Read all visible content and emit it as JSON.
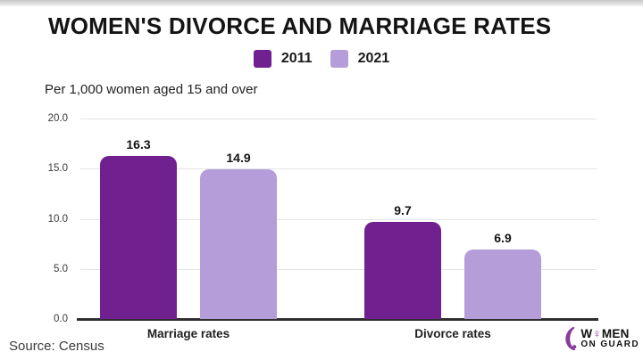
{
  "title": "WOMEN'S DIVORCE AND MARRIAGE RATES",
  "subtitle": "Per 1,000 women aged 15 and over",
  "source": "Source: Census",
  "legend": [
    {
      "label": "2011",
      "color": "#71218F"
    },
    {
      "label": "2021",
      "color": "#B49DD8"
    }
  ],
  "colors": {
    "bar_2011": "#71218F",
    "bar_2021": "#B49DD8",
    "gridline": "#e4e4e4",
    "axis_line": "#2e2e2e",
    "logo_accent": "#8a3c9c"
  },
  "chart_data": {
    "type": "bar",
    "categories": [
      "Marriage rates",
      "Divorce rates"
    ],
    "series": [
      {
        "name": "2011",
        "color": "#71218F",
        "values": [
          16.3,
          9.7
        ]
      },
      {
        "name": "2021",
        "color": "#B49DD8",
        "values": [
          14.9,
          6.9
        ]
      }
    ],
    "title": "WOMEN'S DIVORCE AND MARRIAGE RATES",
    "xlabel": "",
    "ylabel": "Per 1,000 women aged 15 and over",
    "ylim": [
      0,
      20
    ],
    "yticks": [
      "20.0",
      "15.0",
      "10.0",
      "5.0",
      "0.0"
    ],
    "grid": true,
    "legend_position": "top-center",
    "data_labels": [
      "16.3",
      "14.9",
      "9.7",
      "6.9"
    ]
  },
  "logo": {
    "name_start": "W",
    "gender_symbol": "♀",
    "name_end": "MEN",
    "line2": "ON GUARD"
  }
}
